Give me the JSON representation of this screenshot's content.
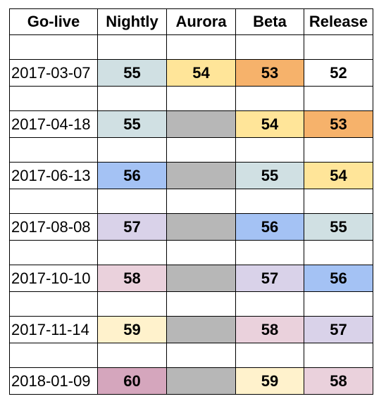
{
  "headers": [
    "Go-live",
    "Nightly",
    "Aurora",
    "Beta",
    "Release"
  ],
  "colors": {
    "teal": "#d0e0e3",
    "yellow": "#ffe599",
    "orange": "#f6b26b",
    "gray": "#b7b7b7",
    "blue": "#a4c2f4",
    "lavender": "#d9d2e9",
    "pink": "#ead1dc",
    "cream": "#fff2cc",
    "magenta": "#d5a6bd",
    "white": "#ffffff"
  },
  "rows": [
    {
      "date": "2017-03-07",
      "cells": [
        {
          "value": "55",
          "color": "teal"
        },
        {
          "value": "54",
          "color": "yellow"
        },
        {
          "value": "53",
          "color": "orange"
        },
        {
          "value": "52",
          "color": "white"
        }
      ]
    },
    {
      "date": "2017-04-18",
      "cells": [
        {
          "value": "55",
          "color": "teal"
        },
        {
          "value": "",
          "color": "gray"
        },
        {
          "value": "54",
          "color": "yellow"
        },
        {
          "value": "53",
          "color": "orange"
        }
      ]
    },
    {
      "date": "2017-06-13",
      "cells": [
        {
          "value": "56",
          "color": "blue"
        },
        {
          "value": "",
          "color": "gray"
        },
        {
          "value": "55",
          "color": "teal"
        },
        {
          "value": "54",
          "color": "yellow"
        }
      ]
    },
    {
      "date": "2017-08-08",
      "cells": [
        {
          "value": "57",
          "color": "lavender"
        },
        {
          "value": "",
          "color": "gray"
        },
        {
          "value": "56",
          "color": "blue"
        },
        {
          "value": "55",
          "color": "teal"
        }
      ]
    },
    {
      "date": "2017-10-10",
      "cells": [
        {
          "value": "58",
          "color": "pink"
        },
        {
          "value": "",
          "color": "gray"
        },
        {
          "value": "57",
          "color": "lavender"
        },
        {
          "value": "56",
          "color": "blue"
        }
      ]
    },
    {
      "date": "2017-11-14",
      "cells": [
        {
          "value": "59",
          "color": "cream"
        },
        {
          "value": "",
          "color": "gray"
        },
        {
          "value": "58",
          "color": "pink"
        },
        {
          "value": "57",
          "color": "lavender"
        }
      ]
    },
    {
      "date": "2018-01-09",
      "cells": [
        {
          "value": "60",
          "color": "magenta"
        },
        {
          "value": "",
          "color": "gray"
        },
        {
          "value": "59",
          "color": "cream"
        },
        {
          "value": "58",
          "color": "pink"
        }
      ]
    }
  ]
}
